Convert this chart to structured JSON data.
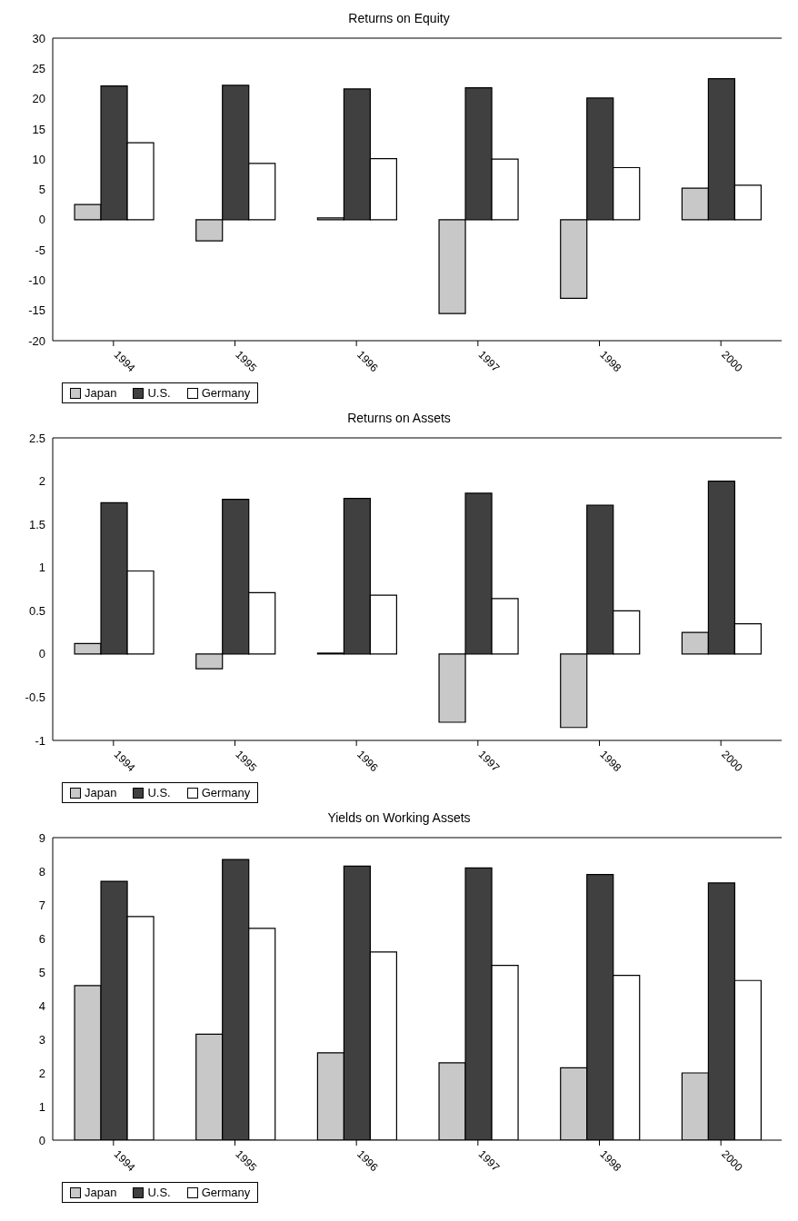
{
  "chart_data": [
    {
      "type": "bar",
      "title": "Returns on Equity",
      "categories": [
        "1994",
        "1995",
        "1996",
        "1997",
        "1998",
        "2000"
      ],
      "ylim": [
        -20,
        30
      ],
      "yticks": [
        -20,
        -15,
        -10,
        -5,
        0,
        5,
        10,
        15,
        20,
        25,
        30
      ],
      "legend": "bottom left",
      "series": [
        {
          "name": "Japan",
          "color": "#c8c8c8",
          "values": [
            2.5,
            -3.5,
            0.3,
            -15.5,
            -13,
            5.2
          ]
        },
        {
          "name": "U.S.",
          "color": "#404040",
          "values": [
            22.1,
            22.2,
            21.6,
            21.8,
            20.1,
            23.3
          ]
        },
        {
          "name": "Germany",
          "color": "#ffffff",
          "values": [
            12.7,
            9.3,
            10.1,
            10,
            8.6,
            5.7
          ]
        }
      ]
    },
    {
      "type": "bar",
      "title": "Returns on Assets",
      "categories": [
        "1994",
        "1995",
        "1996",
        "1997",
        "1998",
        "2000"
      ],
      "ylim": [
        -1,
        2.5
      ],
      "yticks": [
        -1,
        -0.5,
        0,
        0.5,
        1,
        1.5,
        2,
        2.5
      ],
      "legend": "bottom left",
      "series": [
        {
          "name": "Japan",
          "color": "#c8c8c8",
          "values": [
            0.12,
            -0.17,
            0.01,
            -0.79,
            -0.85,
            0.25
          ]
        },
        {
          "name": "U.S.",
          "color": "#404040",
          "values": [
            1.75,
            1.79,
            1.8,
            1.86,
            1.72,
            2
          ]
        },
        {
          "name": "Germany",
          "color": "#ffffff",
          "values": [
            0.96,
            0.71,
            0.68,
            0.64,
            0.5,
            0.35
          ]
        }
      ]
    },
    {
      "type": "bar",
      "title": "Yields on Working Assets",
      "categories": [
        "1994",
        "1995",
        "1996",
        "1997",
        "1998",
        "2000"
      ],
      "ylim": [
        0,
        9
      ],
      "yticks": [
        0,
        1,
        2,
        3,
        4,
        5,
        6,
        7,
        8,
        9
      ],
      "legend": "bottom left",
      "series": [
        {
          "name": "Japan",
          "color": "#c8c8c8",
          "values": [
            4.6,
            3.15,
            2.6,
            2.3,
            2.15,
            2
          ]
        },
        {
          "name": "U.S.",
          "color": "#404040",
          "values": [
            7.7,
            8.35,
            8.15,
            8.1,
            7.9,
            7.65
          ]
        },
        {
          "name": "Germany",
          "color": "#ffffff",
          "values": [
            6.65,
            6.3,
            5.6,
            5.2,
            4.9,
            4.75
          ]
        }
      ]
    }
  ]
}
